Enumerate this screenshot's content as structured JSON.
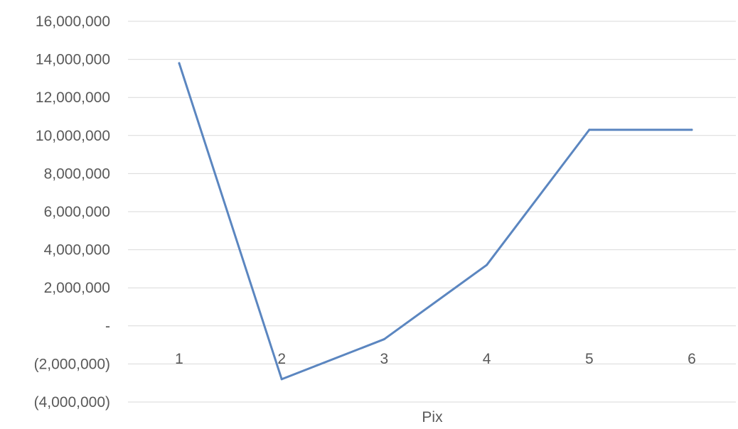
{
  "chart_data": {
    "type": "line",
    "title": "",
    "xlabel": "Pix",
    "ylabel": "",
    "categories": [
      "1",
      "2",
      "3",
      "4",
      "5",
      "6"
    ],
    "series": [
      {
        "values": [
          13800000,
          -2800000,
          -700000,
          3200000,
          10300000,
          10300000
        ]
      }
    ],
    "y_ticks": [
      {
        "value": 16000000,
        "label": "16,000,000"
      },
      {
        "value": 14000000,
        "label": "14,000,000"
      },
      {
        "value": 12000000,
        "label": "12,000,000"
      },
      {
        "value": 10000000,
        "label": "10,000,000"
      },
      {
        "value": 8000000,
        "label": "8,000,000"
      },
      {
        "value": 6000000,
        "label": "6,000,000"
      },
      {
        "value": 4000000,
        "label": "4,000,000"
      },
      {
        "value": 2000000,
        "label": "2,000,000"
      },
      {
        "value": 0,
        "label": "-"
      },
      {
        "value": -2000000,
        "label": "(2,000,000)"
      },
      {
        "value": -4000000,
        "label": "(4,000,000)"
      }
    ],
    "ylim": [
      -4000000,
      16000000
    ],
    "grid": true,
    "legend": "none",
    "colors": {
      "line": "#5b86c0",
      "grid": "#d9d9d9",
      "text": "#595959"
    }
  }
}
